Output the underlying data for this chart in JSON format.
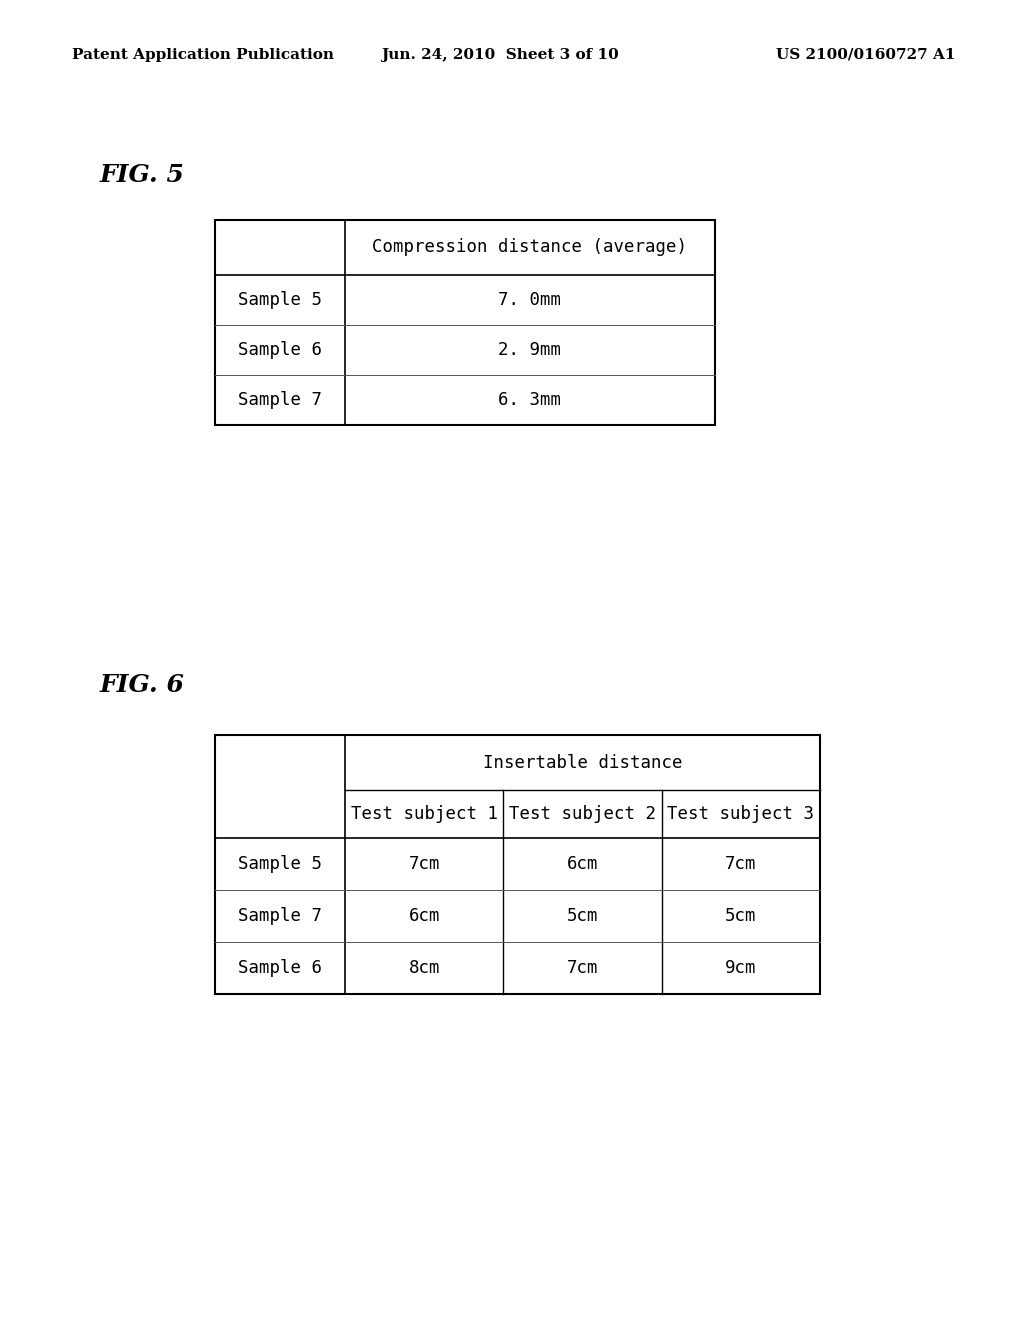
{
  "background_color": "#ffffff",
  "header_left": "Patent Application Publication",
  "header_center": "Jun. 24, 2010  Sheet 3 of 10",
  "header_right": "US 2100/0160727 A1",
  "fig5_label": "FIG. 5",
  "fig6_label": "FIG. 6",
  "fig5_col_header": "Compression distance (average)",
  "fig5_rows": [
    [
      "Sample 5",
      "7. 0mm"
    ],
    [
      "Sample 6",
      "2. 9mm"
    ],
    [
      "Sample 7",
      "6. 3mm"
    ]
  ],
  "fig6_col_header": "Insertable distance",
  "fig6_sub_headers": [
    "Test subject 1",
    "Test subject 2",
    "Test subject 3"
  ],
  "fig6_rows": [
    [
      "Sample 5",
      "7cm",
      "6cm",
      "7cm"
    ],
    [
      "Sample 7",
      "6cm",
      "5cm",
      "5cm"
    ],
    [
      "Sample 6",
      "8cm",
      "7cm",
      "9cm"
    ]
  ],
  "header_fontsize": 11,
  "fig_label_fontsize": 18,
  "table_fontsize": 12.5,
  "text_color": "#000000"
}
